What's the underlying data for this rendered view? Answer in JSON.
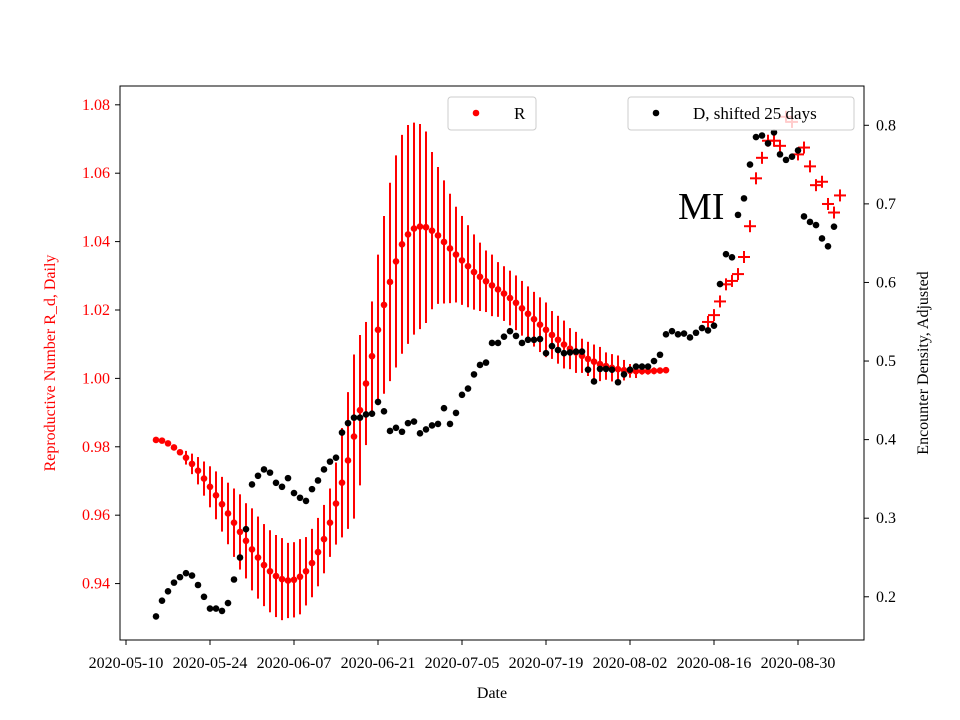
{
  "chart_data": {
    "type": "scatter",
    "xlabel": "Date",
    "ylabel_left": "Reproductive Number R_d, Daily",
    "ylabel_right": "Encounter Density, Adjusted",
    "annotation": "MI",
    "x_tick_labels": [
      "2020-05-10",
      "2020-05-24",
      "2020-06-07",
      "2020-06-21",
      "2020-07-05",
      "2020-07-19",
      "2020-08-02",
      "2020-08-16",
      "2020-08-30"
    ],
    "y_left_ticks": [
      "0.94",
      "0.96",
      "0.98",
      "1.00",
      "1.02",
      "1.04",
      "1.06",
      "1.08"
    ],
    "y_right_ticks": [
      "0.2",
      "0.3",
      "0.4",
      "0.5",
      "0.6",
      "0.7",
      "0.8"
    ],
    "x_range": [
      "2020-05-09",
      "2020-09-10"
    ],
    "y_left_range": [
      0.9235,
      1.0855
    ],
    "y_right_range": [
      0.145,
      0.85
    ],
    "legend": [
      {
        "label": "R",
        "placement": "upper-center"
      },
      {
        "label": "D, shifted 25 days",
        "placement": "upper-right"
      }
    ],
    "colors": {
      "R": "#ff0000",
      "D": "#000000"
    },
    "series": [
      {
        "name": "R",
        "axis": "left",
        "style": "points-with-error-bars",
        "start_date": "2020-05-15",
        "values": [
          0.982,
          0.9818,
          0.981,
          0.9798,
          0.9784,
          0.9768,
          0.975,
          0.973,
          0.9707,
          0.9683,
          0.9658,
          0.9632,
          0.9605,
          0.9578,
          0.9551,
          0.9525,
          0.95,
          0.9476,
          0.9454,
          0.9436,
          0.9422,
          0.9413,
          0.9409,
          0.9411,
          0.942,
          0.9436,
          0.946,
          0.9492,
          0.953,
          0.9578,
          0.9634,
          0.9695,
          0.976,
          0.983,
          0.9907,
          0.9985,
          1.0065,
          1.0142,
          1.0215,
          1.0282,
          1.0342,
          1.0392,
          1.0421,
          1.0438,
          1.0444,
          1.0442,
          1.0432,
          1.0418,
          1.0399,
          1.038,
          1.0362,
          1.0345,
          1.0328,
          1.0311,
          1.0297,
          1.0284,
          1.0272,
          1.026,
          1.0248,
          1.0235,
          1.0221,
          1.0205,
          1.0189,
          1.0173,
          1.0157,
          1.0142,
          1.0127,
          1.0113,
          1.0099,
          1.0087,
          1.0076,
          1.0066,
          1.0057,
          1.0049,
          1.0042,
          1.0036,
          1.0031,
          1.0027,
          1.0024,
          1.0022,
          1.0021,
          1.0021,
          1.0021,
          1.0022,
          1.0023,
          1.0024
        ],
        "err": [
          0,
          0,
          0,
          0,
          0,
          0.002,
          0.003,
          0.004,
          0.005,
          0.006,
          0.007,
          0.008,
          0.009,
          0.01,
          0.011,
          0.011,
          0.012,
          0.012,
          0.012,
          0.012,
          0.012,
          0.012,
          0.011,
          0.011,
          0.011,
          0.01,
          0.01,
          0.01,
          0.01,
          0.01,
          0.012,
          0.016,
          0.02,
          0.024,
          0.022,
          0.018,
          0.016,
          0.022,
          0.026,
          0.029,
          0.031,
          0.032,
          0.032,
          0.031,
          0.03,
          0.028,
          0.023,
          0.02,
          0.018,
          0.016,
          0.014,
          0.013,
          0.012,
          0.011,
          0.01,
          0.009,
          0.009,
          0.008,
          0.008,
          0.008,
          0.008,
          0.008,
          0.008,
          0.008,
          0.008,
          0.008,
          0.007,
          0.007,
          0.007,
          0.006,
          0.006,
          0.005,
          0.005,
          0.005,
          0.005,
          0.004,
          0.004,
          0.004,
          0.003,
          0.002,
          0.002,
          0.001,
          0.001,
          0.001,
          0,
          0
        ]
      },
      {
        "name": "R (estimates)",
        "axis": "left",
        "style": "plus-markers",
        "start_date": "2020-08-15",
        "values": [
          1.0165,
          1.0185,
          1.0225,
          1.0275,
          1.0285,
          1.0305,
          1.0355,
          1.0445,
          1.0585,
          1.0645,
          1.0695,
          1.0695,
          1.068,
          1.0765,
          1.075,
          1.0655,
          1.0675,
          1.062,
          1.0565,
          1.0575,
          1.051,
          1.0485,
          1.0535
        ]
      },
      {
        "name": "D, shifted 25 days",
        "axis": "right",
        "style": "points",
        "start_date": "2020-05-15",
        "values": [
          0.175,
          0.195,
          0.207,
          0.218,
          0.225,
          0.23,
          0.227,
          0.215,
          0.2,
          0.185,
          0.185,
          0.182,
          0.192,
          0.222,
          0.25,
          0.286,
          0.343,
          0.354,
          0.362,
          0.358,
          0.345,
          0.34,
          0.351,
          0.332,
          0.326,
          0.322,
          0.337,
          0.348,
          0.362,
          0.372,
          0.377,
          0.409,
          0.421,
          0.428,
          0.428,
          0.432,
          0.433,
          0.448,
          0.436,
          0.411,
          0.415,
          0.41,
          0.421,
          0.423,
          0.408,
          0.413,
          0.418,
          0.42,
          0.44,
          0.42,
          0.434,
          0.457,
          0.465,
          0.483,
          0.495,
          0.498,
          0.523,
          0.523,
          0.531,
          0.538,
          0.532,
          0.523,
          0.527,
          0.527,
          0.528,
          0.51,
          0.519,
          0.514,
          0.51,
          0.511,
          0.512,
          0.512,
          0.489,
          0.474,
          0.49,
          0.49,
          0.489,
          0.473,
          0.483,
          0.489,
          0.493,
          0.493,
          0.493,
          0.5,
          0.508,
          0.534,
          0.538,
          0.534,
          0.535,
          0.53,
          0.536,
          0.542,
          0.539,
          0.545,
          0.598,
          0.636,
          0.632,
          0.686,
          0.707,
          0.75,
          0.785,
          0.787,
          0.777,
          0.791,
          0.763,
          0.756,
          0.76,
          0.768,
          0.684,
          0.677,
          0.673,
          0.656,
          0.646,
          0.671
        ]
      }
    ]
  }
}
